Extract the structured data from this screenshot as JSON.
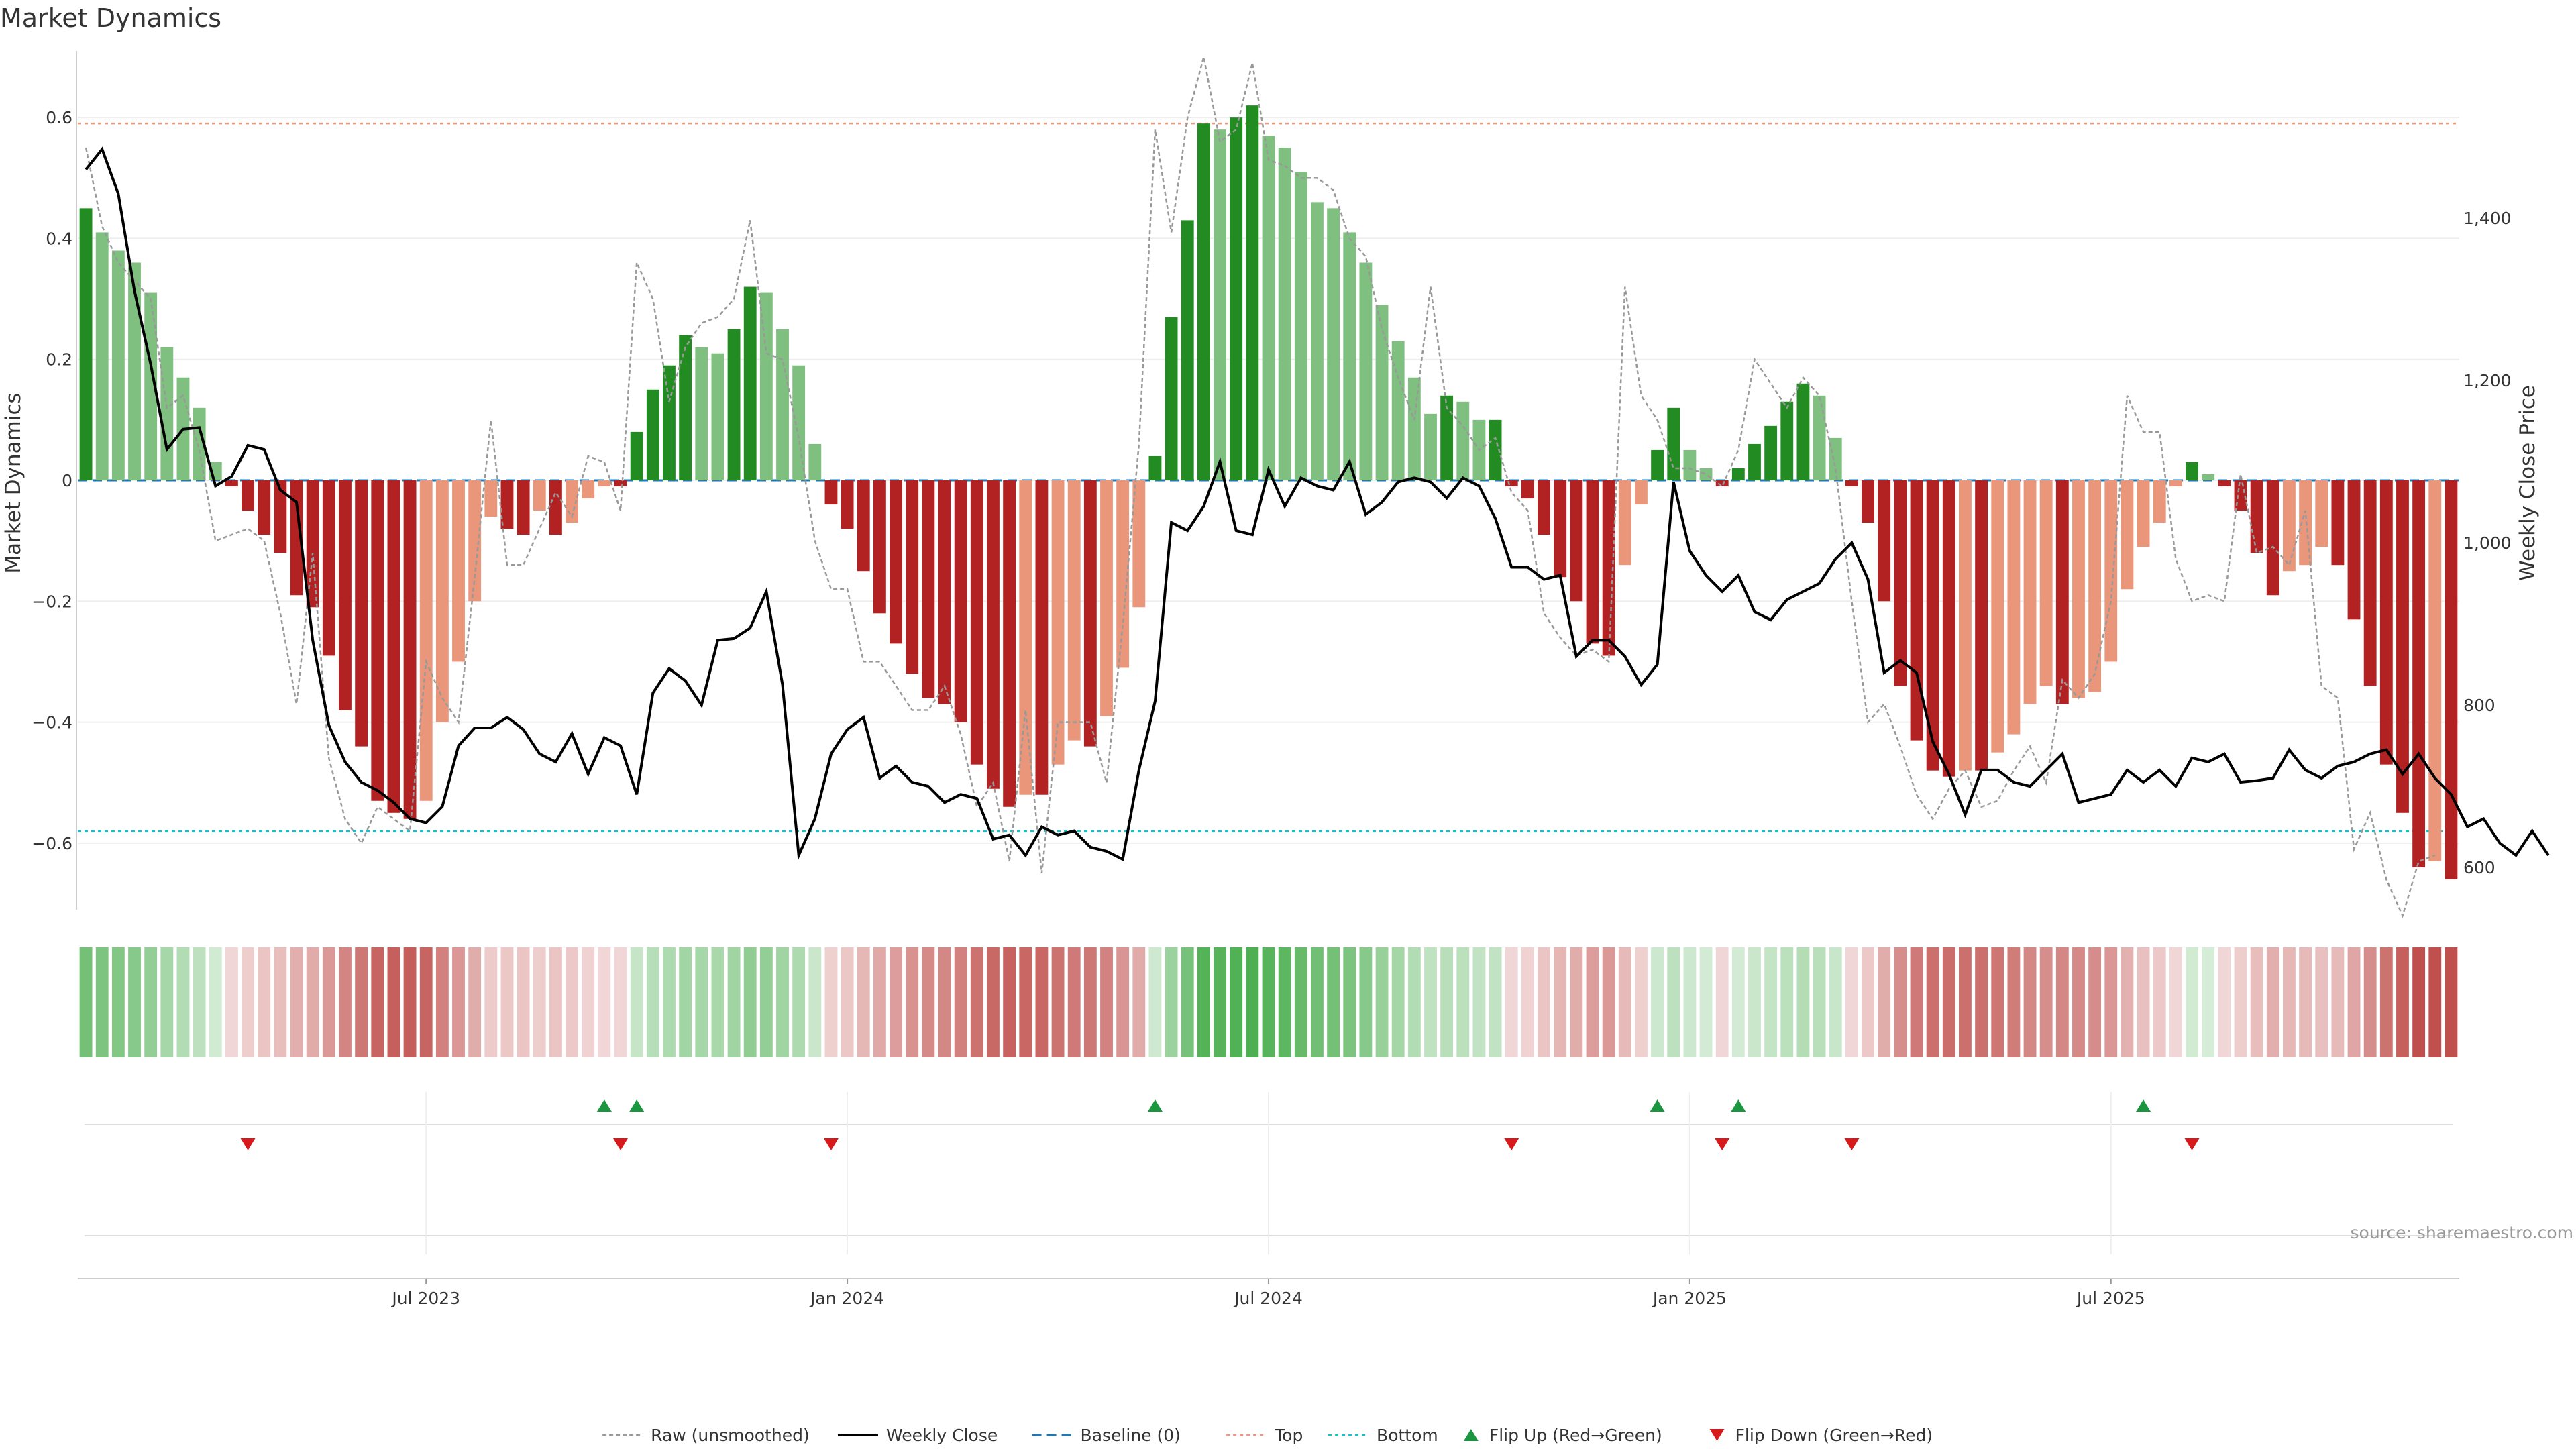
{
  "colors": {
    "bar_strong_green": "#228B22",
    "bar_light_green": "#7fbf7f",
    "bar_strong_red": "#b22222",
    "bar_light_red": "#e9967a",
    "close_line": "#000000",
    "raw_line": "#999999",
    "baseline": "#1f77b4",
    "top": "#e9967a",
    "bottom": "#17becf",
    "flip_up": "#1a9641",
    "flip_down": "#d7191c"
  },
  "chart_data": {
    "type": "bar",
    "title": "Market Dynamics",
    "ylabel_left": "Market Dynamics",
    "ylabel_right": "Weekly Close Price",
    "ylim_left": [
      -0.71,
      0.71
    ],
    "ylim_right": [
      548,
      1606
    ],
    "yticks_left": [
      {
        "value": 0.6,
        "label": "0.6"
      },
      {
        "value": 0.4,
        "label": "0.4"
      },
      {
        "value": 0.2,
        "label": "0.2"
      },
      {
        "value": 0,
        "label": "0"
      },
      {
        "value": -0.2,
        "label": "−0.2"
      },
      {
        "value": -0.4,
        "label": "−0.4"
      },
      {
        "value": -0.6,
        "label": "−0.6"
      }
    ],
    "yticks_right": [
      {
        "value": 1400,
        "label": "1,400"
      },
      {
        "value": 1200,
        "label": "1,200"
      },
      {
        "value": 1000,
        "label": "1,000"
      },
      {
        "value": 800,
        "label": "800"
      },
      {
        "value": 600,
        "label": "600"
      }
    ],
    "xticks": [
      {
        "index": 21,
        "label": "Jul 2023"
      },
      {
        "index": 47,
        "label": "Jan 2024"
      },
      {
        "index": 73,
        "label": "Jul 2024"
      },
      {
        "index": 99,
        "label": "Jan 2025"
      },
      {
        "index": 125,
        "label": "Jul 2025"
      }
    ],
    "top_level": 0.59,
    "bottom_level": -0.58,
    "baseline": 0,
    "series": [
      {
        "name": "Market Dynamics (smoothed)",
        "values": [
          0.45,
          0.41,
          0.38,
          0.36,
          0.31,
          0.22,
          0.17,
          0.12,
          0.03,
          -0.01,
          -0.05,
          -0.09,
          -0.12,
          -0.19,
          -0.21,
          -0.29,
          -0.38,
          -0.44,
          -0.53,
          -0.55,
          -0.56,
          -0.53,
          -0.4,
          -0.3,
          -0.2,
          -0.06,
          -0.08,
          -0.09,
          -0.05,
          -0.09,
          -0.07,
          -0.03,
          -0.01,
          -0.01,
          0.08,
          0.15,
          0.19,
          0.24,
          0.22,
          0.21,
          0.25,
          0.32,
          0.31,
          0.25,
          0.19,
          0.06,
          -0.04,
          -0.08,
          -0.15,
          -0.22,
          -0.27,
          -0.32,
          -0.36,
          -0.37,
          -0.4,
          -0.47,
          -0.51,
          -0.54,
          -0.52,
          -0.52,
          -0.47,
          -0.43,
          -0.44,
          -0.39,
          -0.31,
          -0.21,
          0.04,
          0.27,
          0.43,
          0.59,
          0.58,
          0.6,
          0.62,
          0.57,
          0.55,
          0.51,
          0.46,
          0.45,
          0.41,
          0.36,
          0.29,
          0.23,
          0.17,
          0.11,
          0.14,
          0.13,
          0.1,
          0.1,
          -0.01,
          -0.03,
          -0.09,
          -0.16,
          -0.2,
          -0.27,
          -0.29,
          -0.14,
          -0.04,
          0.05,
          0.12,
          0.05,
          0.02,
          -0.01,
          0.02,
          0.06,
          0.09,
          0.13,
          0.16,
          0.14,
          0.07,
          -0.01,
          -0.07,
          -0.2,
          -0.34,
          -0.43,
          -0.48,
          -0.49,
          -0.48,
          -0.48,
          -0.45,
          -0.42,
          -0.37,
          -0.34,
          -0.37,
          -0.36,
          -0.35,
          -0.3,
          -0.18,
          -0.11,
          -0.07,
          -0.01,
          0.03,
          0.01,
          -0.01,
          -0.05,
          -0.12,
          -0.19,
          -0.15,
          -0.14,
          -0.11,
          -0.14,
          -0.23,
          -0.34,
          -0.47,
          -0.55,
          -0.64,
          -0.63,
          -0.66
        ]
      },
      {
        "name": "Raw (unsmoothed)",
        "values": [
          0.55,
          0.42,
          0.36,
          0.33,
          0.3,
          0.12,
          0.14,
          0.05,
          -0.1,
          -0.09,
          -0.08,
          -0.1,
          -0.22,
          -0.37,
          -0.12,
          -0.46,
          -0.56,
          -0.6,
          -0.54,
          -0.56,
          -0.58,
          -0.3,
          -0.36,
          -0.4,
          -0.16,
          0.1,
          -0.14,
          -0.14,
          -0.08,
          -0.02,
          -0.06,
          0.04,
          0.03,
          -0.05,
          0.36,
          0.3,
          0.13,
          0.22,
          0.26,
          0.27,
          0.3,
          0.43,
          0.21,
          0.2,
          0.07,
          -0.1,
          -0.18,
          -0.18,
          -0.3,
          -0.3,
          -0.34,
          -0.38,
          -0.38,
          -0.34,
          -0.42,
          -0.54,
          -0.5,
          -0.63,
          -0.38,
          -0.65,
          -0.4,
          -0.4,
          -0.4,
          -0.5,
          -0.24,
          0.06,
          0.58,
          0.41,
          0.6,
          0.7,
          0.56,
          0.58,
          0.69,
          0.53,
          0.52,
          0.5,
          0.5,
          0.48,
          0.4,
          0.37,
          0.25,
          0.17,
          0.1,
          0.32,
          0.12,
          0.09,
          0.05,
          0.07,
          -0.02,
          -0.05,
          -0.22,
          -0.26,
          -0.29,
          -0.28,
          -0.3,
          0.32,
          0.14,
          0.1,
          0.02,
          0.02,
          0.01,
          -0.01,
          0.05,
          0.2,
          0.16,
          0.12,
          0.17,
          0.14,
          0.02,
          -0.2,
          -0.4,
          -0.37,
          -0.44,
          -0.52,
          -0.56,
          -0.51,
          -0.48,
          -0.54,
          -0.53,
          -0.48,
          -0.44,
          -0.5,
          -0.33,
          -0.36,
          -0.32,
          -0.2,
          0.14,
          0.08,
          0.08,
          -0.13,
          -0.2,
          -0.19,
          -0.2,
          0.01,
          -0.12,
          -0.11,
          -0.14,
          -0.05,
          -0.34,
          -0.36,
          -0.61,
          -0.55,
          -0.66,
          -0.72,
          -0.63,
          -0.62
        ]
      },
      {
        "name": "Weekly Close",
        "values": [
          1460,
          1485,
          1430,
          1310,
          1220,
          1115,
          1140,
          1142,
          1070,
          1082,
          1120,
          1115,
          1065,
          1050,
          880,
          775,
          730,
          705,
          695,
          680,
          660,
          655,
          675,
          750,
          772,
          772,
          785,
          770,
          740,
          730,
          765,
          715,
          760,
          750,
          690,
          815,
          845,
          830,
          800,
          880,
          882,
          895,
          940,
          825,
          615,
          660,
          740,
          770,
          785,
          710,
          725,
          705,
          700,
          680,
          690,
          685,
          635,
          640,
          615,
          650,
          640,
          645,
          625,
          620,
          610,
          720,
          805,
          1025,
          1015,
          1045,
          1100,
          1015,
          1010,
          1090,
          1045,
          1080,
          1070,
          1065,
          1100,
          1035,
          1050,
          1075,
          1080,
          1075,
          1055,
          1080,
          1070,
          1030,
          970,
          970,
          955,
          960,
          860,
          880,
          880,
          860,
          825,
          850,
          1075,
          990,
          960,
          940,
          960,
          915,
          905,
          930,
          940,
          950,
          980,
          1000,
          955,
          840,
          855,
          840,
          755,
          715,
          665,
          720,
          720,
          705,
          700,
          720,
          740,
          680,
          685,
          690,
          720,
          705,
          720,
          700,
          735,
          730,
          740,
          705,
          707,
          710,
          745,
          720,
          710,
          725,
          730,
          740,
          745,
          715,
          740,
          710,
          690,
          650,
          660,
          630,
          615,
          645,
          615
        ],
        "start_index": 0
      },
      {
        "name": "Baseline (0)",
        "values": [
          0
        ]
      },
      {
        "name": "Top",
        "values": [
          0.59
        ]
      },
      {
        "name": "Bottom",
        "values": [
          -0.58
        ]
      }
    ],
    "flip_up_indices": [
      32,
      34,
      66,
      97,
      102,
      127
    ],
    "flip_down_indices": [
      10,
      33,
      46,
      88,
      101,
      109,
      130
    ],
    "legend": [
      {
        "key": "raw",
        "label": "Raw (unsmoothed)"
      },
      {
        "key": "close",
        "label": "Weekly Close"
      },
      {
        "key": "baseline",
        "label": "Baseline (0)"
      },
      {
        "key": "top",
        "label": "Top"
      },
      {
        "key": "bottom",
        "label": "Bottom"
      },
      {
        "key": "flipup",
        "label": "Flip Up (Red→Green)"
      },
      {
        "key": "flipdown",
        "label": "Flip Down (Green→Red)"
      }
    ],
    "legend_position": "bottom-center",
    "source": "source: sharemaestro.com"
  }
}
